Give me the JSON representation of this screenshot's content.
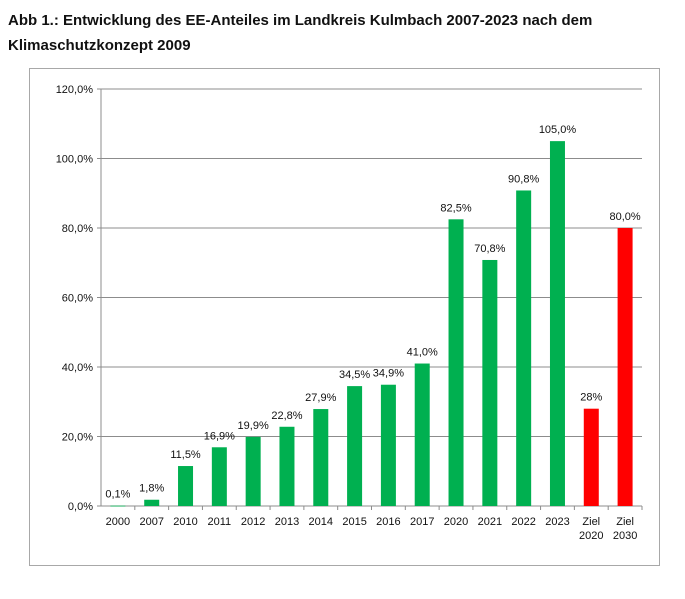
{
  "page": {
    "title_line1": "Abb 1.: Entwicklung des EE-Anteiles im Landkreis Kulmbach 2007-2023 nach dem",
    "title_line2": "Klimaschutzkonzept 2009"
  },
  "chart_data": {
    "type": "bar",
    "title": "Abb 1.: Entwicklung des EE-Anteiles im Landkreis Kulmbach 2007-2023 nach dem Klimaschutzkonzept 2009",
    "xlabel": "",
    "ylabel": "",
    "ylim": [
      0,
      120
    ],
    "yticks": [
      0,
      20,
      40,
      60,
      80,
      100,
      120
    ],
    "ytick_labels": [
      "0,0%",
      "20,0%",
      "40,0%",
      "60,0%",
      "80,0%",
      "100,0%",
      "120,0%"
    ],
    "grid": true,
    "colors": {
      "actual": "#00b050",
      "target": "#ff0000"
    },
    "categories": [
      [
        "2000"
      ],
      [
        "2007"
      ],
      [
        "2010"
      ],
      [
        "2011"
      ],
      [
        "2012"
      ],
      [
        "2013"
      ],
      [
        "2014"
      ],
      [
        "2015"
      ],
      [
        "2016"
      ],
      [
        "2017"
      ],
      [
        "2020"
      ],
      [
        "2021"
      ],
      [
        "2022"
      ],
      [
        "2023"
      ],
      [
        "Ziel",
        "2020"
      ],
      [
        "Ziel",
        "2030"
      ]
    ],
    "values": [
      0.1,
      1.8,
      11.5,
      16.9,
      19.9,
      22.8,
      27.9,
      34.5,
      34.9,
      41.0,
      82.5,
      70.8,
      90.8,
      105.0,
      28,
      80.0
    ],
    "data_labels": [
      "0,1%",
      "1,8%",
      "11,5%",
      "16,9%",
      "19,9%",
      "22,8%",
      "27,9%",
      "34,5%",
      "34,9%",
      "41,0%",
      "82,5%",
      "70,8%",
      "90,8%",
      "105,0%",
      "28%",
      "80,0%"
    ],
    "bar_kind": [
      "actual",
      "actual",
      "actual",
      "actual",
      "actual",
      "actual",
      "actual",
      "actual",
      "actual",
      "actual",
      "actual",
      "actual",
      "actual",
      "actual",
      "target",
      "target"
    ]
  }
}
